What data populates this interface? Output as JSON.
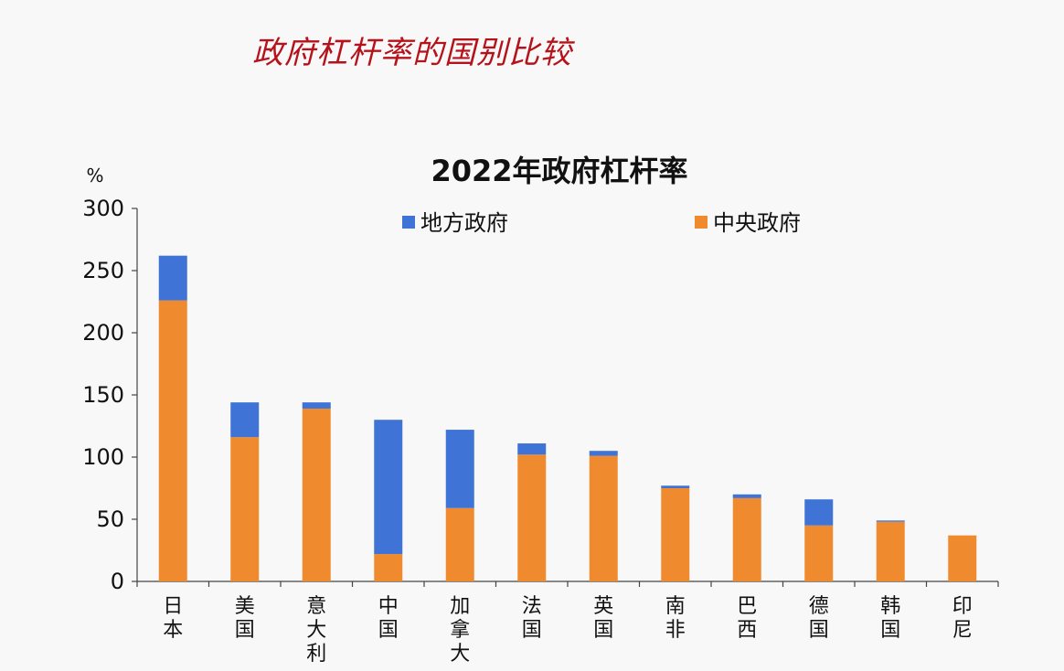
{
  "heading": "政府杠杆率的国别比较",
  "chart_data": {
    "type": "bar",
    "stacked": true,
    "title": "2022年政府杠杆率",
    "ylabel": "%",
    "xlabel": "",
    "ylim": [
      0,
      300
    ],
    "yticks": [
      0,
      50,
      100,
      150,
      200,
      250,
      300
    ],
    "categories": [
      "日本",
      "美国",
      "意大利",
      "中国",
      "加拿大",
      "法国",
      "英国",
      "南非",
      "巴西",
      "德国",
      "韩国",
      "印尼"
    ],
    "series": [
      {
        "name": "中央政府",
        "color": "#f08a2e",
        "values": [
          226,
          116,
          139,
          22,
          59,
          102,
          101,
          75,
          67,
          45,
          48,
          37
        ]
      },
      {
        "name": "地方政府",
        "color": "#3f74d6",
        "values": [
          36,
          28,
          5,
          108,
          63,
          9,
          4,
          2,
          3,
          21,
          1,
          0
        ]
      }
    ],
    "legend": {
      "order": [
        "地方政府",
        "中央政府"
      ],
      "placement": "top"
    },
    "grid": false
  }
}
